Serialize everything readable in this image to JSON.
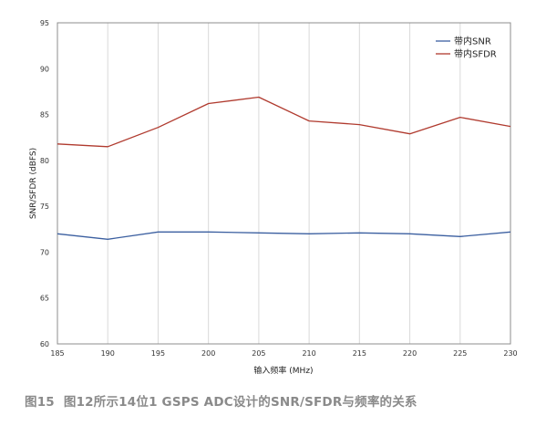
{
  "chart_data": {
    "type": "line",
    "title": "",
    "xlabel": "输入频率 (MHz)",
    "ylabel": "SNR/SFDR (dBFS)",
    "x": [
      185,
      190,
      195,
      200,
      205,
      210,
      215,
      220,
      225,
      230
    ],
    "xlim": [
      185,
      230
    ],
    "ylim": [
      60,
      95
    ],
    "xticks": [
      "185",
      "190",
      "195",
      "200",
      "205",
      "210",
      "215",
      "220",
      "225",
      "230"
    ],
    "yticks": [
      "60",
      "65",
      "70",
      "75",
      "80",
      "85",
      "90",
      "95"
    ],
    "grid": "vertical",
    "legend_position": "top-right",
    "series": [
      {
        "name": "带内SNR",
        "color": "#3b5fa0",
        "values": [
          72.0,
          71.4,
          72.2,
          72.2,
          72.1,
          72.0,
          72.1,
          72.0,
          71.7,
          72.2
        ]
      },
      {
        "name": "带内SFDR",
        "color": "#b03a2e",
        "values": [
          81.8,
          81.5,
          83.6,
          86.2,
          86.9,
          84.3,
          83.9,
          82.9,
          84.7,
          83.7
        ]
      }
    ]
  },
  "caption": {
    "figure_number": "图15",
    "text": "图12所示14位1 GSPS ADC设计的SNR/SFDR与频率的关系"
  }
}
